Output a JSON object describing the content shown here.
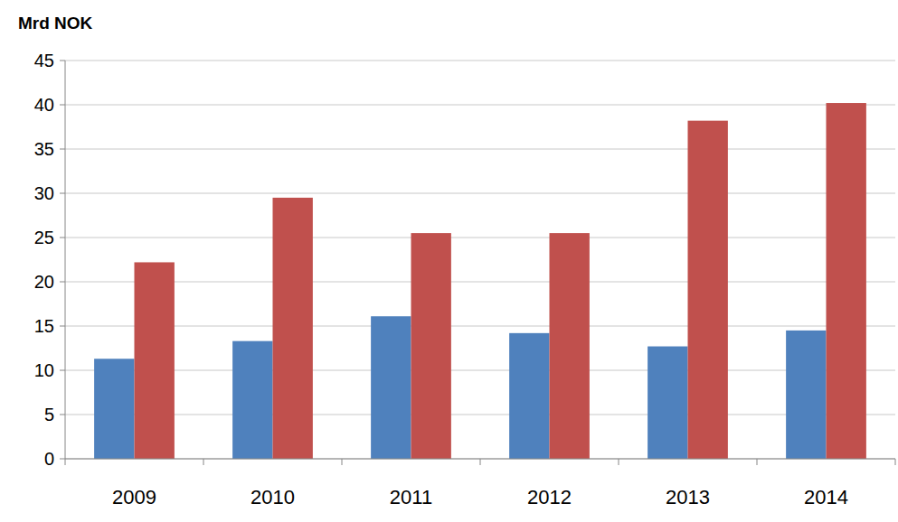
{
  "chart_data": {
    "type": "bar",
    "y_label": "Mrd NOK",
    "categories": [
      "2009",
      "2010",
      "2011",
      "2012",
      "2013",
      "2014"
    ],
    "series": [
      {
        "color": "#4f81bd",
        "values": [
          11.3,
          13.3,
          16.1,
          14.2,
          12.7,
          14.5
        ]
      },
      {
        "color": "#c0504d",
        "values": [
          22.2,
          29.5,
          25.5,
          25.5,
          38.2,
          40.2
        ]
      }
    ],
    "ylim": [
      0,
      45
    ],
    "yticks": [
      0,
      5,
      10,
      15,
      20,
      25,
      30,
      35,
      40,
      45
    ],
    "grid": true
  }
}
